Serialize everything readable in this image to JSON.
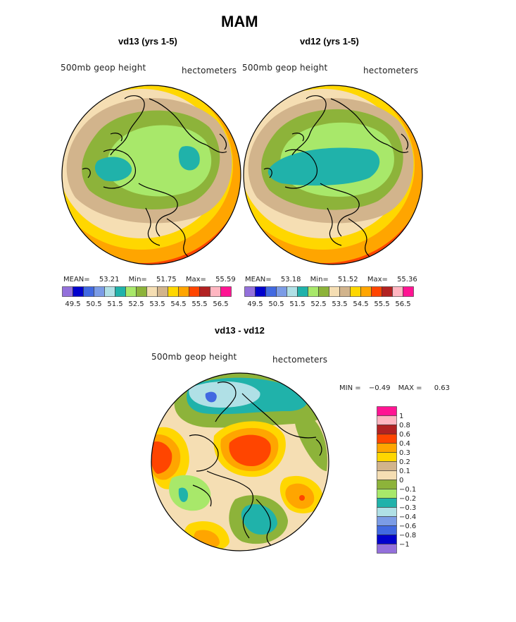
{
  "title": "MAM",
  "panels": {
    "left": {
      "subtitle": "vd13 (yrs 1-5)",
      "field_label": "500mb geop height",
      "units": "hectometers",
      "mean_label": "MEAN=",
      "mean": "53.21",
      "min_label": "Min=",
      "min": "51.75",
      "max_label": "Max=",
      "max": "55.59"
    },
    "right": {
      "subtitle": "vd12 (yrs 1-5)",
      "field_label": "500mb geop height",
      "units": "hectometers",
      "mean_label": "MEAN=",
      "mean": "53.18",
      "min_label": "Min=",
      "min": "51.52",
      "max_label": "Max=",
      "max": "55.36"
    },
    "diff": {
      "subtitle": "vd13 - vd12",
      "field_label": "500mb geop height",
      "units": "hectometers",
      "min_label": "MIN =",
      "min": "−0.49",
      "max_label": "MAX =",
      "max": "0.63"
    }
  },
  "chart_data": [
    {
      "type": "heatmap",
      "projection": "north-polar-stereographic",
      "title": "vd13 (yrs 1-5)",
      "variable": "500mb geop height",
      "units": "hectometers",
      "mean": 53.21,
      "min": 51.75,
      "max": 55.59,
      "levels": [
        49.5,
        50.0,
        50.5,
        51.0,
        51.5,
        52.0,
        52.5,
        53.0,
        53.5,
        54.0,
        54.5,
        55.0,
        55.5,
        56.0,
        56.5
      ],
      "colorbar_tick_labels": [
        "49.5",
        "50.5",
        "51.5",
        "52.5",
        "53.5",
        "54.5",
        "55.5",
        "56.5"
      ]
    },
    {
      "type": "heatmap",
      "projection": "north-polar-stereographic",
      "title": "vd12 (yrs 1-5)",
      "variable": "500mb geop height",
      "units": "hectometers",
      "mean": 53.18,
      "min": 51.52,
      "max": 55.36,
      "levels": [
        49.5,
        50.0,
        50.5,
        51.0,
        51.5,
        52.0,
        52.5,
        53.0,
        53.5,
        54.0,
        54.5,
        55.0,
        55.5,
        56.0,
        56.5
      ],
      "colorbar_tick_labels": [
        "49.5",
        "50.5",
        "51.5",
        "52.5",
        "53.5",
        "54.5",
        "55.5",
        "56.5"
      ]
    },
    {
      "type": "heatmap",
      "projection": "north-polar-stereographic",
      "title": "vd13 - vd12",
      "variable": "500mb geop height",
      "units": "hectometers",
      "min": -0.49,
      "max": 0.63,
      "levels": [
        -1,
        -0.8,
        -0.6,
        -0.4,
        -0.3,
        -0.2,
        -0.1,
        0,
        0.1,
        0.2,
        0.3,
        0.4,
        0.6,
        0.8,
        1
      ],
      "colorbar_tick_labels": [
        "1",
        "0.8",
        "0.6",
        "0.4",
        "0.3",
        "0.2",
        "0.1",
        "0",
        "−0.1",
        "−0.2",
        "−0.3",
        "−0.4",
        "−0.6",
        "−0.8",
        "−1"
      ]
    }
  ],
  "palette_abs": [
    "#9370db",
    "#0000cd",
    "#4169e1",
    "#7b9ce6",
    "#b0e0e6",
    "#20b2aa",
    "#a8e86a",
    "#8db33a",
    "#f5deb3",
    "#d2b48c",
    "#ffd700",
    "#ffa500",
    "#ff4500",
    "#b22222",
    "#ffb6c1",
    "#ff1493"
  ],
  "palette_diff": [
    "#ff1493",
    "#ffb6c1",
    "#b22222",
    "#ff4500",
    "#ffa500",
    "#ffd700",
    "#d2b48c",
    "#f5deb3",
    "#8db33a",
    "#a8e86a",
    "#20b2aa",
    "#b0e0e6",
    "#7b9ce6",
    "#4169e1",
    "#0000cd",
    "#9370db"
  ]
}
